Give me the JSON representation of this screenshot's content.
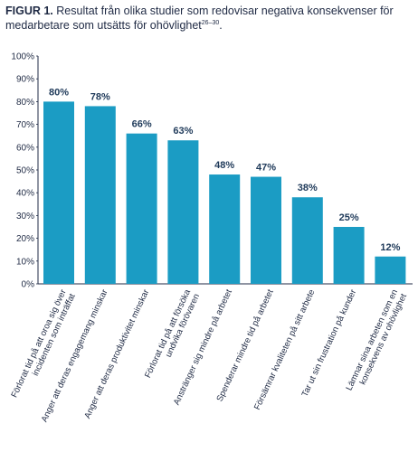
{
  "caption": {
    "lead": "FIGUR 1.",
    "text": " Resultat från olika studier som redovisar negativa konsekvenser för medarbetare som utsätts för ohövlighet",
    "refs": "26–30",
    "end": "."
  },
  "chart_data": {
    "type": "bar",
    "categories": [
      [
        "Förlorat tid på att oroa sig över",
        "incidenten som inträffat"
      ],
      [
        "Anger att deras engagemang minskar"
      ],
      [
        "Anger att deras produktivitet minskar"
      ],
      [
        "Förlorat tid på att försöka",
        "undvika förövaren"
      ],
      [
        "Anstränger sig mindre på arbetet"
      ],
      [
        "Spenderar mindre tid på arbetet"
      ],
      [
        "Försämrar kvaliteten på sitt arbete"
      ],
      [
        "Tar ut sin frustration på kunder"
      ],
      [
        "Lämnar sina arbeten som en",
        "konsekvens av ohövlighet"
      ]
    ],
    "values": [
      80,
      78,
      66,
      63,
      48,
      47,
      38,
      25,
      12
    ],
    "value_labels": [
      "80%",
      "78%",
      "66%",
      "63%",
      "48%",
      "47%",
      "38%",
      "25%",
      "12%"
    ],
    "yticks": [
      "0%",
      "10%",
      "20%",
      "30%",
      "40%",
      "50%",
      "60%",
      "70%",
      "80%",
      "90%",
      "100%"
    ],
    "ylim": [
      0,
      100
    ],
    "grid": false,
    "bar_color": "#1b9cc4",
    "axis_color": "#1f2a44"
  }
}
